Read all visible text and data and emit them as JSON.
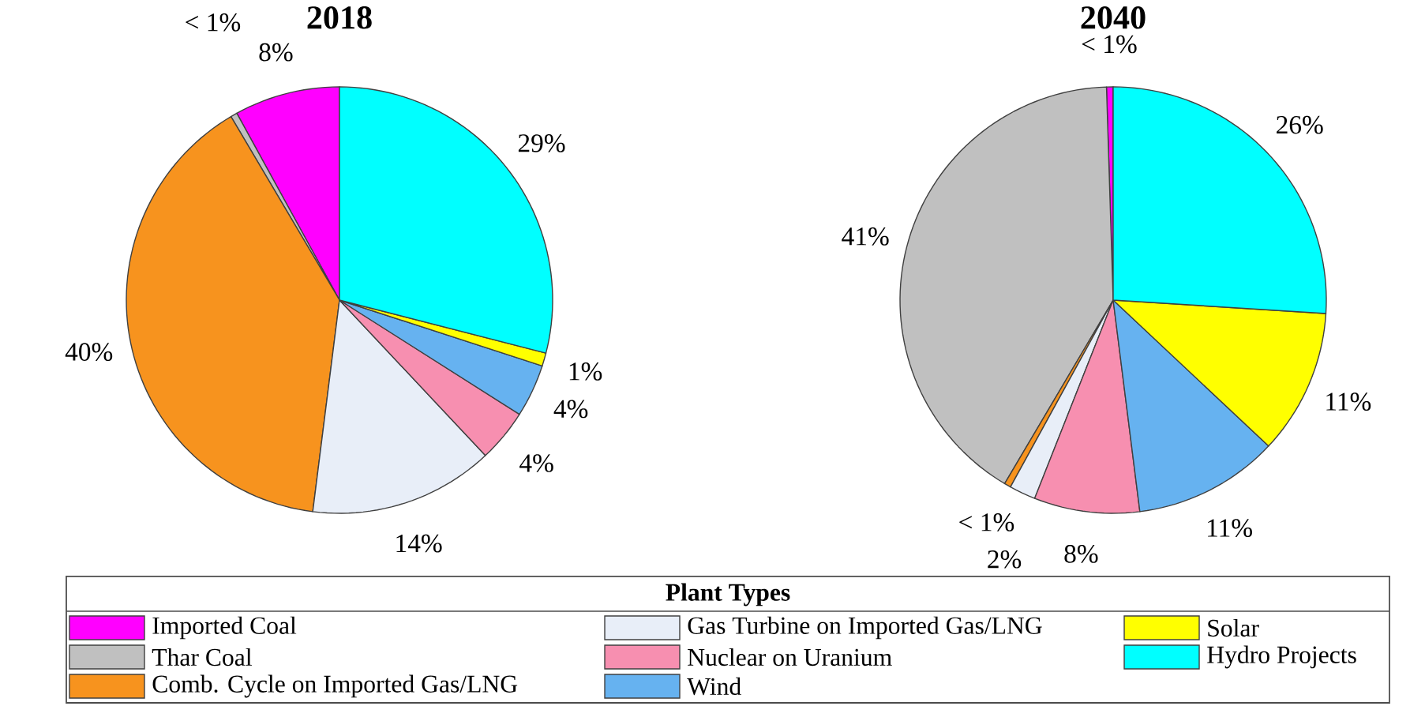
{
  "chart_data": [
    {
      "type": "pie",
      "title": "2018",
      "categories": [
        "Imported Coal",
        "Thar Coal",
        "Comb. Cycle on Imported Gas/LNG",
        "Gas Turbine on Imported Gas/LNG",
        "Nuclear on Uranium",
        "Wind",
        "Solar",
        "Hydro Projects"
      ],
      "values": [
        8,
        0.5,
        39.5,
        14,
        4,
        4,
        1,
        29
      ],
      "value_labels": [
        "8%",
        "< 1%",
        "40%",
        "14%",
        "4%",
        "4%",
        "1%",
        "29%"
      ],
      "colors": [
        "#ff00ff",
        "#c0c0c0",
        "#f7931e",
        "#e8eef8",
        "#f78fb0",
        "#66b2f0",
        "#ffff00",
        "#00ffff"
      ],
      "legend": "bottom",
      "legend_title": "Plant Types"
    },
    {
      "type": "pie",
      "title": "2040",
      "categories": [
        null,
        null,
        null,
        null,
        null,
        null,
        null,
        null
      ],
      "values": [
        0.5,
        41,
        0.5,
        2,
        8,
        11,
        11,
        26
      ],
      "value_labels": [
        "< 1%",
        "41%",
        "< 1%",
        "2%",
        "8%",
        "11%",
        "11%",
        "26%"
      ],
      "colors": [
        "#ff00ff",
        "#c0c0c0",
        "#f7931e",
        "#e8eef8",
        "#f78fb0",
        "#66b2f0",
        "#ffff00",
        "#00ffff"
      ],
      "legend": false
    }
  ]
}
